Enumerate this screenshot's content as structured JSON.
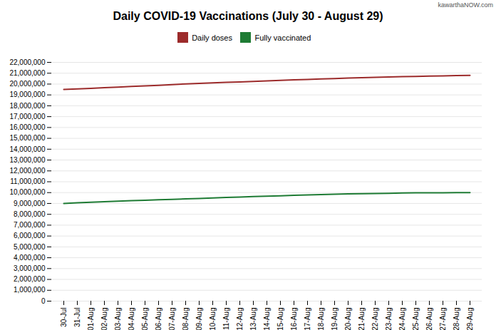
{
  "chart_data": {
    "type": "line",
    "title": "Daily COVID-19 Vaccinations (July 30 - August 29)",
    "annotations": [
      "kawarthaNOW.com"
    ],
    "categories": [
      "30-Jul",
      "31-Jul",
      "01-Aug",
      "02-Aug",
      "03-Aug",
      "04-Aug",
      "05-Aug",
      "06-Aug",
      "07-Aug",
      "08-Aug",
      "09-Aug",
      "10-Aug",
      "11-Aug",
      "12-Aug",
      "13-Aug",
      "14-Aug",
      "15-Aug",
      "16-Aug",
      "17-Aug",
      "18-Aug",
      "19-Aug",
      "20-Aug",
      "21-Aug",
      "22-Aug",
      "23-Aug",
      "24-Aug",
      "25-Aug",
      "26-Aug",
      "27-Aug",
      "28-Aug",
      "29-Aug"
    ],
    "series": [
      {
        "name": "Daily doses",
        "color": "#9C2B2B",
        "values": [
          19500000,
          19560000,
          19610000,
          19670000,
          19720000,
          19780000,
          19840000,
          19890000,
          19950000,
          20010000,
          20060000,
          20110000,
          20160000,
          20200000,
          20250000,
          20300000,
          20340000,
          20390000,
          20430000,
          20470000,
          20510000,
          20550000,
          20590000,
          20620000,
          20650000,
          20680000,
          20710000,
          20740000,
          20760000,
          20780000,
          20800000
        ]
      },
      {
        "name": "Fully vaccinated",
        "color": "#1E7B34",
        "values": [
          9000000,
          9060000,
          9110000,
          9160000,
          9210000,
          9260000,
          9300000,
          9340000,
          9380000,
          9420000,
          9460000,
          9510000,
          9550000,
          9590000,
          9630000,
          9670000,
          9710000,
          9750000,
          9790000,
          9820000,
          9850000,
          9880000,
          9900000,
          9920000,
          9940000,
          9960000,
          9975000,
          9985000,
          9990000,
          9995000,
          10000000
        ]
      }
    ],
    "ylim": [
      0,
      22000000
    ],
    "yticks": [
      0,
      {
        "value": 1000000,
        "label": "1,000,000"
      },
      {
        "value": 2000000,
        "label": "2,000,000"
      },
      {
        "value": 3000000,
        "label": "3,000,000"
      },
      {
        "value": 4000000,
        "label": "4,000,000"
      },
      {
        "value": 5000000,
        "label": "5,000,000"
      },
      {
        "value": 6000000,
        "label": "6,000,000"
      },
      {
        "value": 7000000,
        "label": "7,000,000"
      },
      {
        "value": 8000000,
        "label": "8,000,000"
      },
      {
        "value": 9000000,
        "label": "9,000,000"
      },
      {
        "value": 10000000,
        "label": "10,000,000"
      },
      {
        "value": 11000000,
        "label": "11,000,000"
      },
      {
        "value": 12000000,
        "label": "12,000,000"
      },
      {
        "value": 13000000,
        "label": "13,000,000"
      },
      {
        "value": 14000000,
        "label": "14,000,000"
      },
      {
        "value": 15000000,
        "label": "15,000,000"
      },
      {
        "value": 16000000,
        "label": "16,000,000"
      },
      {
        "value": 17000000,
        "label": "17,000,000"
      },
      {
        "value": 18000000,
        "label": "18,000,000"
      },
      {
        "value": 19000000,
        "label": "19,000,000"
      },
      {
        "value": 20000000,
        "label": "20,000,000"
      },
      {
        "value": 21000000,
        "label": "21,000,000"
      },
      {
        "value": 22000000,
        "label": "22,000,000"
      }
    ],
    "grid": true,
    "legend": "top"
  }
}
